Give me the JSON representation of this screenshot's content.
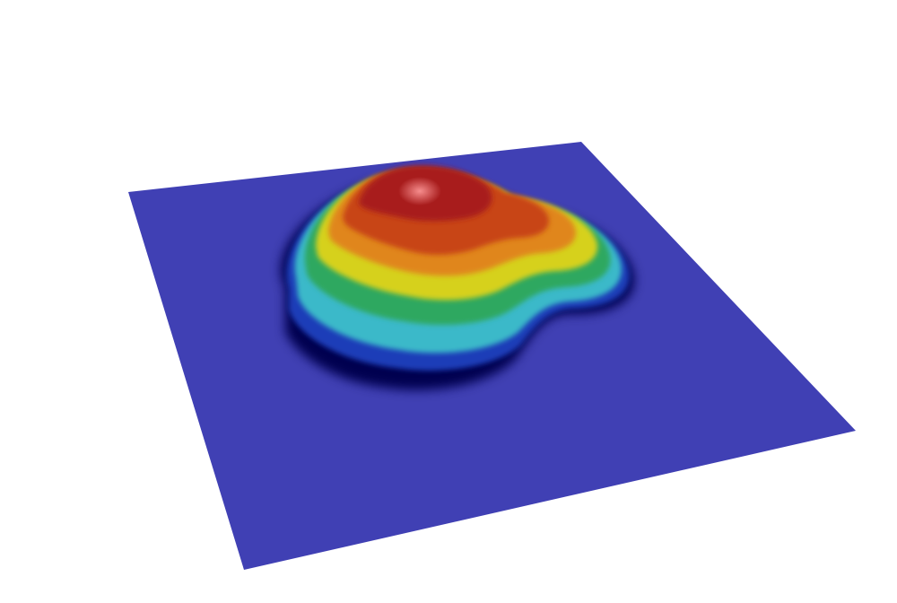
{
  "scene": {
    "background": "#ffffff",
    "plane_color": "#4040b4",
    "colormap": [
      "#000060",
      "#1020a0",
      "#3ab8c8",
      "#3ac8b0",
      "#2fb060",
      "#c8d020",
      "#e8b010",
      "#d05010",
      "#c02820",
      "#a01c1c"
    ]
  }
}
